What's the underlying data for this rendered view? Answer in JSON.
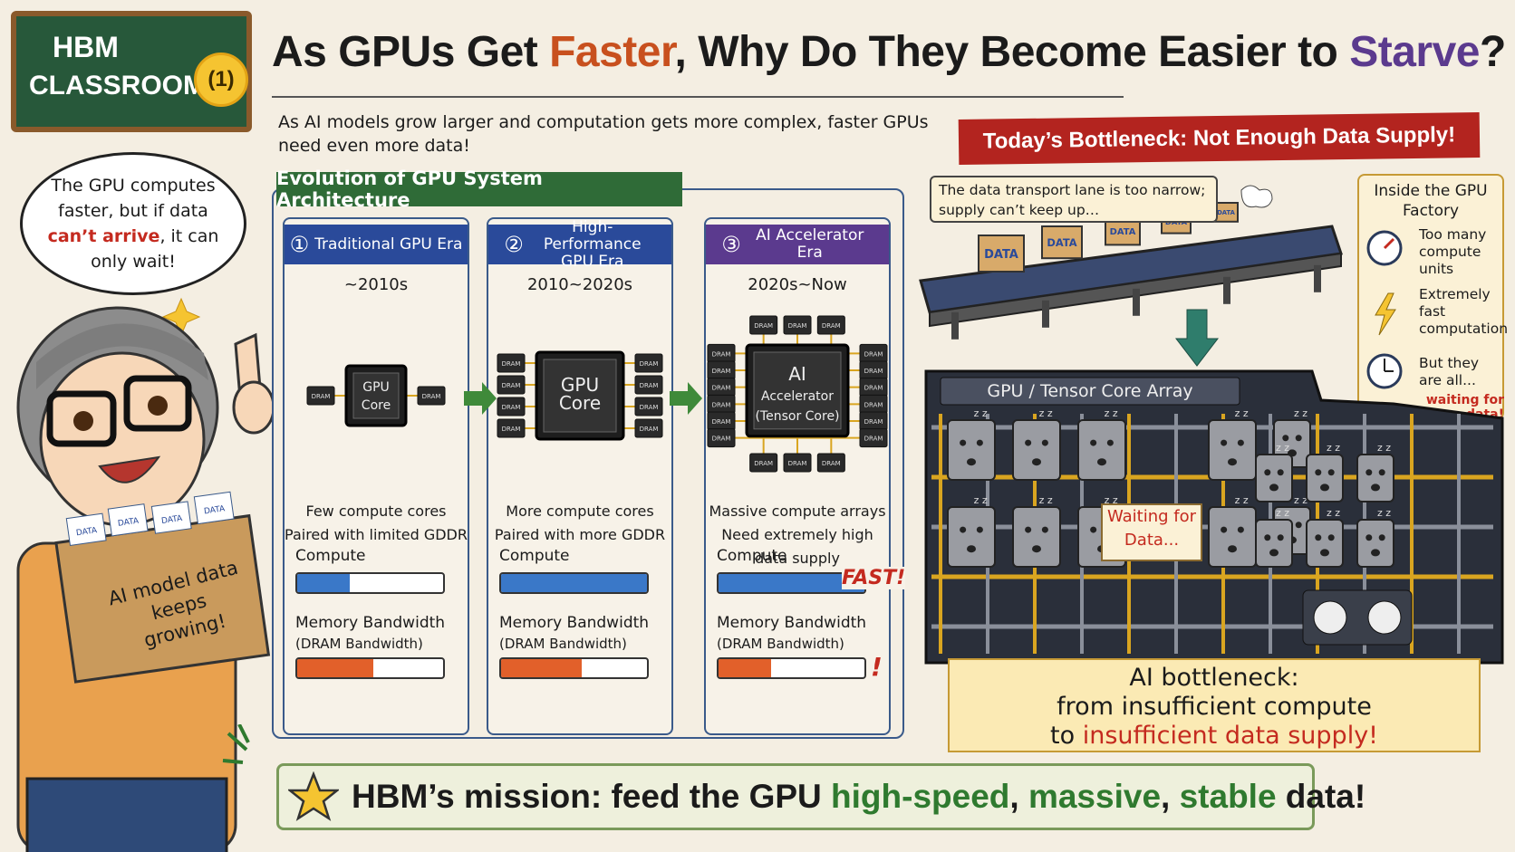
{
  "header": {
    "badge_line1": "HBM",
    "badge_line2": "CLASSROOM",
    "badge_number": "(1)",
    "title": [
      "As GPUs Get ",
      "Faster",
      ", Why Do They Become Easier to ",
      "Starve",
      "?"
    ],
    "subtitle": "As AI models grow larger and computation gets more complex, faster GPUs need even more data!"
  },
  "speech_bubble": [
    "The GPU computes faster, but if data ",
    "can’t arrive",
    ", it can only wait!"
  ],
  "data_box": {
    "label": "AI model data keeps growing!",
    "tag": "DATA"
  },
  "evolution": {
    "title": "Evolution of GPU System Architecture",
    "compute_label": "Compute",
    "bandwidth_label": "Memory Bandwidth",
    "bandwidth_note": "(DRAM Bandwidth)",
    "dram_label": "DRAM",
    "fast_label": "FAST!",
    "alert": "!",
    "eras": [
      {
        "number": "①",
        "name": "Traditional GPU Era",
        "period": "~2010s",
        "chip": [
          "GPU",
          "Core"
        ],
        "description": [
          "Few compute cores",
          "Paired with limited GDDR"
        ]
      },
      {
        "number": "②",
        "name": "High-Performance GPU Era",
        "period": "2010~2020s",
        "chip": [
          "GPU",
          "Core"
        ],
        "description": [
          "More compute cores",
          "Paired with more GDDR"
        ]
      },
      {
        "number": "③",
        "name": "AI Accelerator Era",
        "period": "2020s~Now",
        "chip": [
          "AI",
          "Accelerator",
          "(Tensor Core)"
        ],
        "description": [
          "Massive compute arrays",
          "Need extremely high",
          "data supply"
        ]
      }
    ]
  },
  "bottleneck": {
    "banner": "Today’s Bottleneck: Not Enough Data Supply!",
    "conveyor_note": "The data transport lane is too narrow; supply can’t keep up…",
    "factory_title": "Inside the GPU Factory",
    "factory_items": [
      "Too many compute units",
      "Extremely fast computation",
      "But they are all..."
    ],
    "factory_warning": "waiting for data!",
    "array_label": "GPU / Tensor Core Array",
    "waiting_sign": "Waiting for Data...",
    "sleep": "z z",
    "summary": [
      "AI bottleneck:",
      "from insufficient compute",
      "to ",
      "insufficient data supply!"
    ]
  },
  "mission": [
    "HBM’s mission: feed the GPU ",
    "high-speed",
    ", ",
    "massive",
    ", ",
    "stable",
    " data!"
  ]
}
